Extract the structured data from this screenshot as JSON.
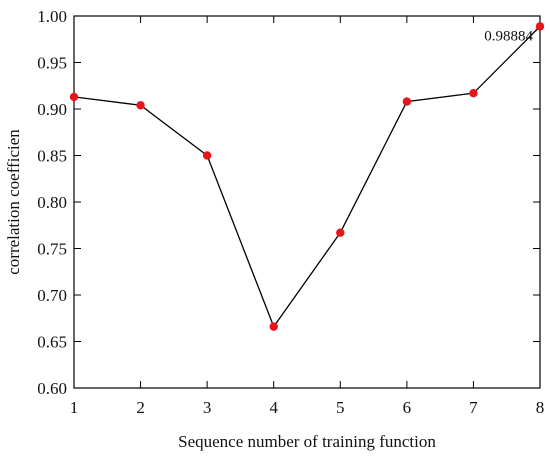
{
  "chart_data": {
    "type": "line",
    "title": "",
    "xlabel": "Sequence number of training function",
    "ylabel": "correlation coefficien",
    "x": [
      1,
      2,
      3,
      4,
      5,
      6,
      7,
      8
    ],
    "x_tick_labels": [
      "1",
      "2",
      "3",
      "4",
      "5",
      "6",
      "7",
      "8"
    ],
    "xlim": [
      1,
      8
    ],
    "ylim": [
      0.6,
      1.0
    ],
    "y_tick_labels": [
      "0.60",
      "0.65",
      "0.70",
      "0.75",
      "0.80",
      "0.85",
      "0.90",
      "0.95",
      "1.00"
    ],
    "series": [
      {
        "values": [
          0.913,
          0.904,
          0.85,
          0.666,
          0.767,
          0.908,
          0.917,
          0.98884
        ],
        "line_color": "#000000",
        "marker_color": "#e8141a"
      }
    ],
    "annotations": [
      {
        "text": "0.98884",
        "x": 8,
        "y": 0.98884
      }
    ],
    "grid": false,
    "legend": "none"
  }
}
